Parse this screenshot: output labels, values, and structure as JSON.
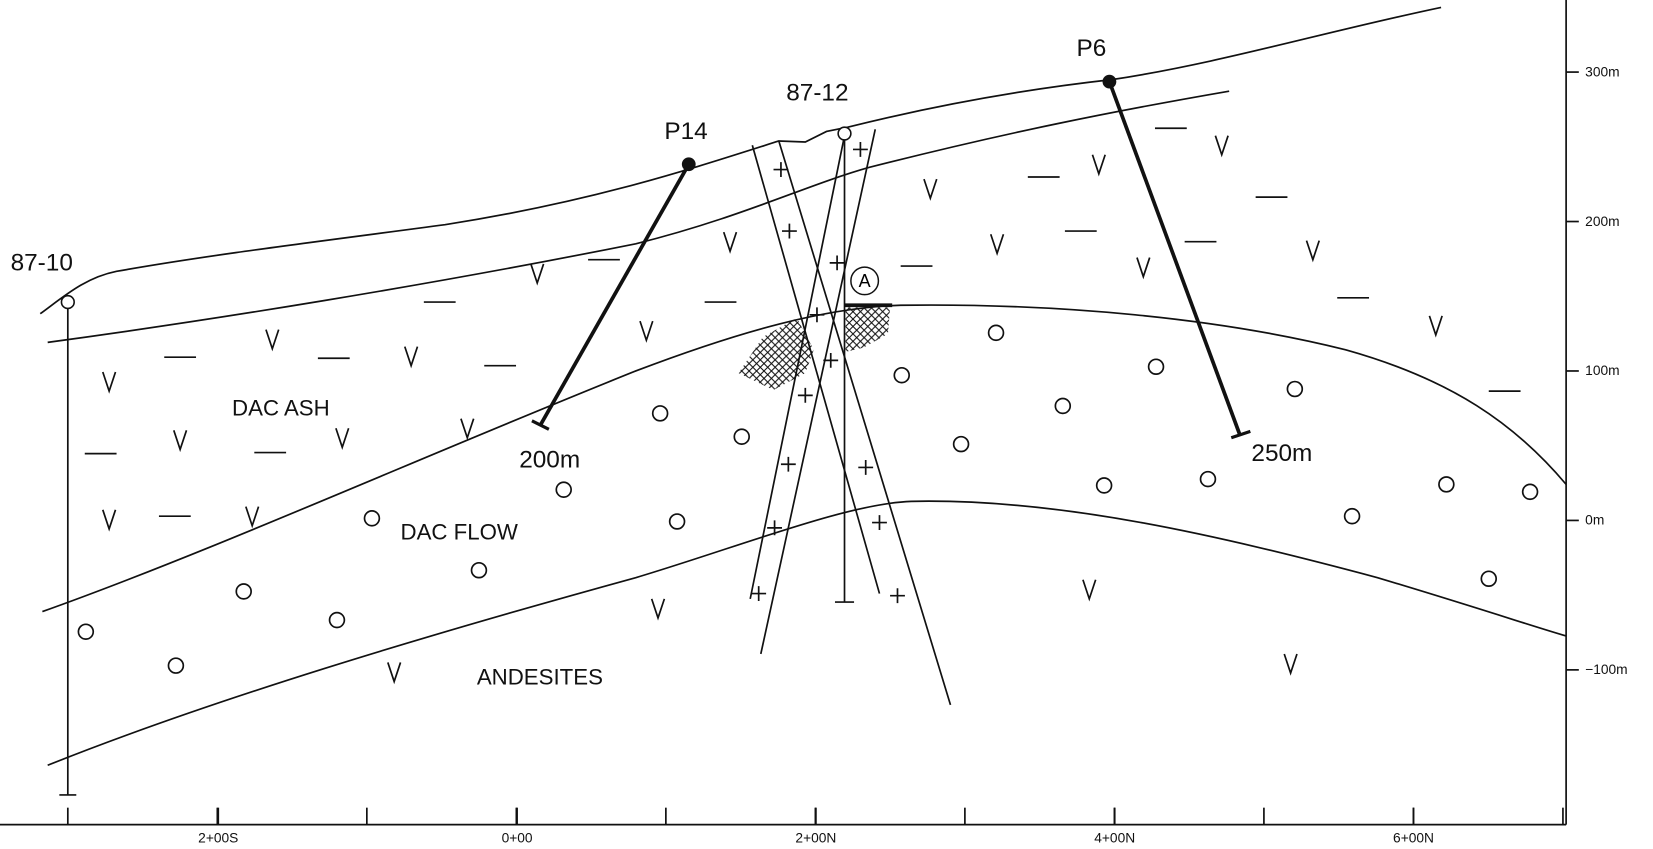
{
  "section_labels": {
    "units": [
      "DAC ASH",
      "DAC FLOW",
      "ANDESITES"
    ],
    "marker": "A"
  },
  "drill_holes": [
    {
      "name": "87-10"
    },
    {
      "name": "87-12"
    },
    {
      "name": "P14",
      "depth_label": "200m"
    },
    {
      "name": "P6",
      "depth_label": "250m"
    }
  ],
  "elevation_axis": {
    "ticks": [
      {
        "value": 300,
        "label": "300m"
      },
      {
        "value": 200,
        "label": "200m"
      },
      {
        "value": 100,
        "label": "100m"
      },
      {
        "value": 0,
        "label": "0m"
      },
      {
        "value": -100,
        "label": "−100m"
      }
    ]
  },
  "section_axis": {
    "ticks": [
      {
        "value": -200,
        "label": "2+00S"
      },
      {
        "value": 0,
        "label": "0+00"
      },
      {
        "value": 200,
        "label": "2+00N"
      },
      {
        "value": 400,
        "label": "4+00N"
      },
      {
        "value": 600,
        "label": "6+00N"
      }
    ]
  }
}
